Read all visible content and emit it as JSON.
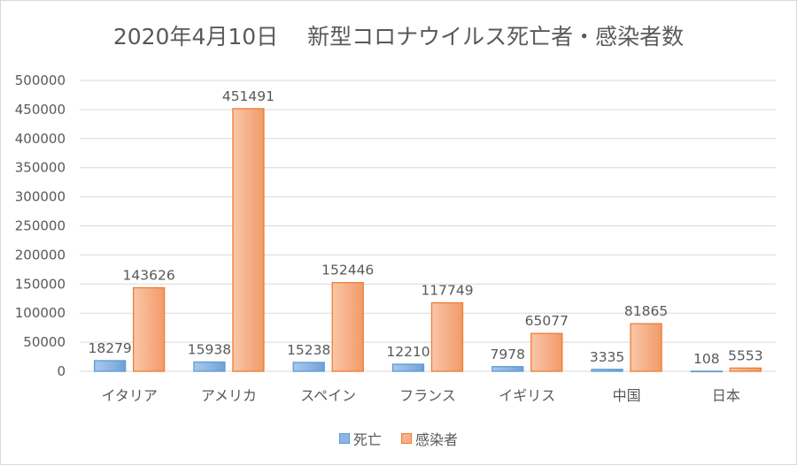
{
  "chart_data": {
    "type": "bar",
    "title": "2020年4月10日　 新型コロナウイルス死亡者・感染者数",
    "categories": [
      "イタリア",
      "アメリカ",
      "スペイン",
      "フランス",
      "イギリス",
      "中国",
      "日本"
    ],
    "series": [
      {
        "name": "死亡",
        "values": [
          18279,
          15938,
          15238,
          12210,
          7978,
          3335,
          108
        ],
        "color": "#5b9bd5"
      },
      {
        "name": "感染者",
        "values": [
          143626,
          451491,
          152446,
          117749,
          65077,
          81865,
          5553
        ],
        "color": "#ed7d31"
      }
    ],
    "ylim": [
      0,
      500000
    ],
    "yticks": [
      0,
      50000,
      100000,
      150000,
      200000,
      250000,
      300000,
      350000,
      400000,
      450000,
      500000
    ],
    "xlabel": "",
    "ylabel": "",
    "grid": true,
    "legend": "bottom"
  }
}
